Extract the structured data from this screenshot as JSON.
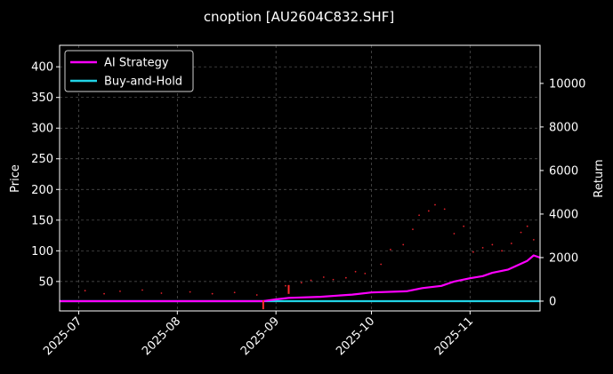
{
  "chart_data": {
    "type": "line",
    "title": "cnoption [AU2604C832.SHF]",
    "xlabel": "",
    "ylabel": "Price",
    "y2label": "Return",
    "x_ticks": [
      "2025-07",
      "2025-08",
      "2025-09",
      "2025-10",
      "2025-11"
    ],
    "x_range": [
      "2025-06-25",
      "2025-11-23"
    ],
    "y_ticks": [
      50,
      100,
      150,
      200,
      250,
      300,
      350,
      400
    ],
    "ylim": [
      2,
      435
    ],
    "y2_ticks": [
      0,
      2000,
      4000,
      6000,
      8000,
      10000
    ],
    "y2lim": [
      -450,
      11750
    ],
    "grid": true,
    "legend_position": "top-left",
    "background": "#000000",
    "series": [
      {
        "name": "AI Strategy",
        "axis": "right",
        "color": "#ff00ff",
        "x": [
          "2025-06-25",
          "2025-08-28",
          "2025-09-01",
          "2025-09-05",
          "2025-09-15",
          "2025-09-25",
          "2025-10-01",
          "2025-10-12",
          "2025-10-17",
          "2025-10-23",
          "2025-10-27",
          "2025-11-01",
          "2025-11-05",
          "2025-11-08",
          "2025-11-13",
          "2025-11-16",
          "2025-11-19",
          "2025-11-21",
          "2025-11-23"
        ],
        "y": [
          0,
          0,
          80,
          150,
          200,
          300,
          400,
          450,
          600,
          700,
          900,
          1050,
          1150,
          1300,
          1450,
          1650,
          1850,
          2100,
          2000
        ]
      },
      {
        "name": "Buy-and-Hold",
        "axis": "right",
        "color": "#22d3e6",
        "x": [
          "2025-06-25",
          "2025-11-23"
        ],
        "y": [
          0,
          0
        ]
      }
    ],
    "price_points": {
      "color": "#e0202a",
      "x": [
        "2025-07-03",
        "2025-07-09",
        "2025-07-14",
        "2025-07-21",
        "2025-07-27",
        "2025-08-05",
        "2025-08-12",
        "2025-08-19",
        "2025-08-26",
        "2025-09-04",
        "2025-09-09",
        "2025-09-12",
        "2025-09-16",
        "2025-09-19",
        "2025-09-23",
        "2025-09-26",
        "2025-09-29",
        "2025-10-04",
        "2025-10-07",
        "2025-10-11",
        "2025-10-14",
        "2025-10-16",
        "2025-10-19",
        "2025-10-21",
        "2025-10-24",
        "2025-10-27",
        "2025-10-30",
        "2025-11-02",
        "2025-11-05",
        "2025-11-08",
        "2025-11-11",
        "2025-11-14",
        "2025-11-17",
        "2025-11-19",
        "2025-11-21"
      ],
      "y": [
        35,
        30,
        34,
        36,
        31,
        33,
        30,
        32,
        28,
        43,
        48,
        52,
        57,
        53,
        56,
        66,
        63,
        78,
        102,
        110,
        135,
        158,
        165,
        175,
        168,
        128,
        140,
        98,
        105,
        110,
        100,
        112,
        130,
        140,
        118
      ]
    },
    "markers": [
      {
        "x": "2025-08-28",
        "y": 12,
        "color": "#ff2a2a",
        "label": ""
      },
      {
        "x": "2025-09-05",
        "y": 37,
        "color": "#ff2a2a",
        "label": ""
      }
    ]
  }
}
